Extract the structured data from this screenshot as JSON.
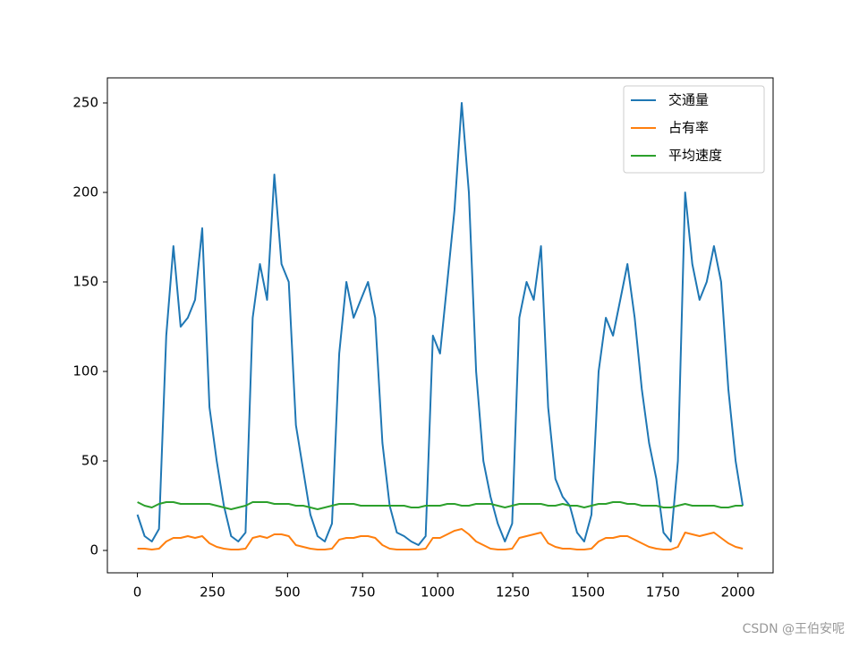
{
  "chart_data": {
    "type": "line",
    "x": [
      0,
      24,
      48,
      72,
      96,
      120,
      144,
      168,
      192,
      216,
      240,
      264,
      288,
      312,
      336,
      360,
      384,
      408,
      432,
      456,
      480,
      504,
      528,
      552,
      576,
      600,
      624,
      648,
      672,
      696,
      720,
      744,
      768,
      792,
      816,
      840,
      864,
      888,
      912,
      936,
      960,
      984,
      1008,
      1032,
      1056,
      1080,
      1104,
      1128,
      1152,
      1176,
      1200,
      1224,
      1248,
      1272,
      1296,
      1320,
      1344,
      1368,
      1392,
      1416,
      1440,
      1464,
      1488,
      1512,
      1536,
      1560,
      1584,
      1608,
      1632,
      1656,
      1680,
      1704,
      1728,
      1752,
      1776,
      1800,
      1824,
      1848,
      1872,
      1896,
      1920,
      1944,
      1968,
      1992,
      2016
    ],
    "series": [
      {
        "name": "交通量",
        "color": "#1f77b4",
        "values": [
          20,
          8,
          5,
          12,
          120,
          170,
          125,
          130,
          140,
          180,
          80,
          50,
          25,
          8,
          5,
          10,
          130,
          160,
          140,
          210,
          160,
          150,
          70,
          45,
          20,
          8,
          5,
          15,
          110,
          150,
          130,
          140,
          150,
          130,
          60,
          25,
          10,
          8,
          5,
          3,
          8,
          120,
          110,
          150,
          190,
          250,
          200,
          100,
          50,
          30,
          15,
          5,
          15,
          130,
          150,
          140,
          170,
          80,
          40,
          30,
          25,
          10,
          5,
          20,
          100,
          130,
          120,
          140,
          160,
          130,
          90,
          60,
          40,
          10,
          5,
          50,
          200,
          160,
          140,
          150,
          170,
          150,
          90,
          50,
          25
        ]
      },
      {
        "name": "占有率",
        "color": "#ff7f0e",
        "values": [
          1,
          1,
          0.5,
          1,
          5,
          7,
          7,
          8,
          7,
          8,
          4,
          2,
          1,
          0.5,
          0.5,
          1,
          7,
          8,
          7,
          9,
          9,
          8,
          3,
          2,
          1,
          0.5,
          0.5,
          1,
          6,
          7,
          7,
          8,
          8,
          7,
          3,
          1,
          0.5,
          0.5,
          0.5,
          0.5,
          1,
          7,
          7,
          9,
          11,
          12,
          9,
          5,
          3,
          1,
          0.5,
          0.5,
          1,
          7,
          8,
          9,
          10,
          4,
          2,
          1,
          1,
          0.5,
          0.5,
          1,
          5,
          7,
          7,
          8,
          8,
          6,
          4,
          2,
          1,
          0.5,
          0.5,
          2,
          10,
          9,
          8,
          9,
          10,
          7,
          4,
          2,
          1
        ]
      },
      {
        "name": "平均速度",
        "color": "#2ca02c",
        "values": [
          27,
          25,
          24,
          26,
          27,
          27,
          26,
          26,
          26,
          26,
          26,
          25,
          24,
          23,
          24,
          25,
          27,
          27,
          27,
          26,
          26,
          26,
          25,
          25,
          24,
          23,
          24,
          25,
          26,
          26,
          26,
          25,
          25,
          25,
          25,
          25,
          25,
          25,
          24,
          24,
          25,
          25,
          25,
          26,
          26,
          25,
          25,
          26,
          26,
          26,
          25,
          24,
          25,
          26,
          26,
          26,
          26,
          25,
          25,
          26,
          25,
          25,
          24,
          25,
          26,
          26,
          27,
          27,
          26,
          26,
          25,
          25,
          25,
          24,
          24,
          25,
          26,
          25,
          25,
          25,
          25,
          24,
          24,
          25,
          25
        ]
      }
    ],
    "xlim": [
      -100,
      2117
    ],
    "ylim": [
      -12.5,
      264
    ],
    "xticks": [
      0,
      250,
      500,
      750,
      1000,
      1250,
      1500,
      1750,
      2000
    ],
    "yticks": [
      0,
      50,
      100,
      150,
      200,
      250
    ],
    "grid": false,
    "legend": "upper right",
    "watermark": "CSDN @王伯安呢"
  }
}
